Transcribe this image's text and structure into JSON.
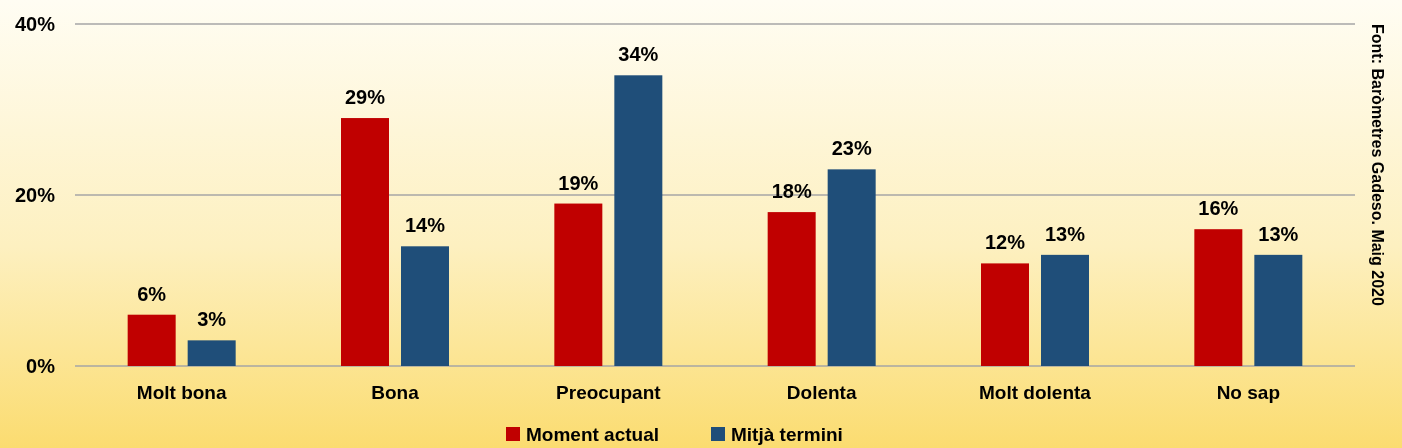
{
  "chart_data": {
    "type": "bar",
    "categories": [
      "Molt bona",
      "Bona",
      "Preocupant",
      "Dolenta",
      "Molt dolenta",
      "No sap"
    ],
    "series": [
      {
        "name": "Moment actual",
        "color": "#c00000",
        "values": [
          6,
          29,
          19,
          18,
          12,
          16
        ],
        "value_labels": [
          "6%",
          "29%",
          "19%",
          "18%",
          "12%",
          "16%"
        ]
      },
      {
        "name": "Mitjà termini",
        "color": "#1f4e79",
        "values": [
          3,
          14,
          34,
          23,
          13,
          13
        ],
        "value_labels": [
          "3%",
          "14%",
          "34%",
          "23%",
          "13%",
          "13%"
        ]
      }
    ],
    "ylim": [
      0,
      40
    ],
    "yticks": [
      {
        "value": 0,
        "label": "0%"
      },
      {
        "value": 20,
        "label": "20%"
      },
      {
        "value": 40,
        "label": "40%"
      }
    ],
    "grid": "y",
    "legend": "bottom",
    "annotations": [
      "Font: Baròmetres Gadeso. Maig 2020"
    ]
  }
}
